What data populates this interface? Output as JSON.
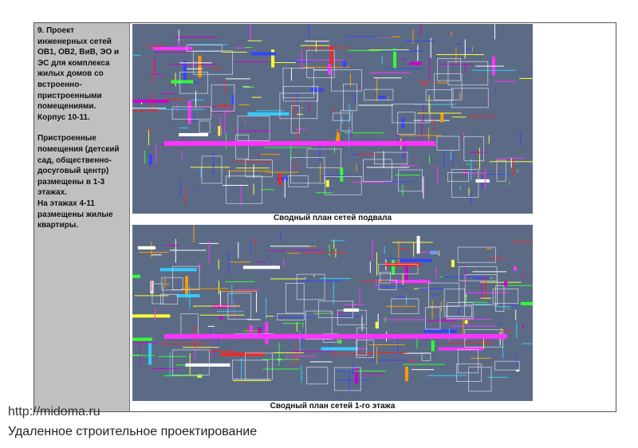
{
  "sidebar": {
    "paragraphs": [
      "9. Проект инженерных сетей ОВ1, ОВ2, ВиВ, ЭО и ЭС для комплекса жилых домов со встроенно-пристроенными помещениями. Корпус 10-11.",
      "Пристроенные помещения (детский сад, общественно-досуговый центр) размещены в 1-3 этажах.",
      "На этажах 4-11 размещены жилые квартиры."
    ]
  },
  "images": [
    {
      "caption": "Сводный план сетей подвала"
    },
    {
      "caption": "Сводный план сетей 1-го этажа"
    }
  ],
  "footer": {
    "url": "http://midoma.ru",
    "tagline": "Удаленное строительное проектирование"
  }
}
